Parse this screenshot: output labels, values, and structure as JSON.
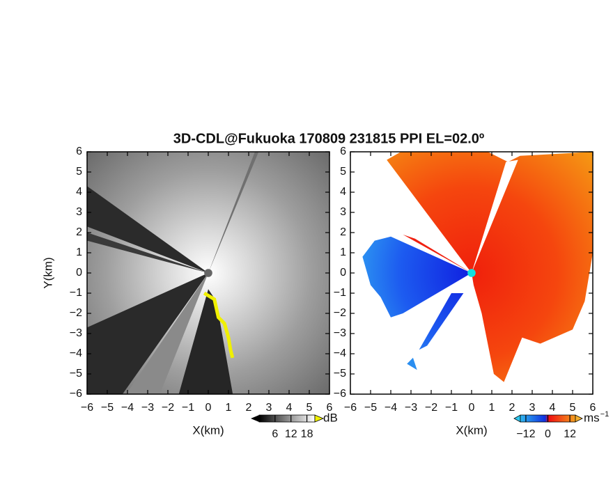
{
  "title": "3D-CDL@Fukuoka 170809 231815 PPI EL=02.0º",
  "chart_data": [
    {
      "type": "heatmap",
      "xlabel": "X(km)",
      "ylabel": "Y(km)",
      "xlim": [
        -6,
        6
      ],
      "ylim": [
        -6,
        6
      ],
      "xticks": [
        {
          "value": -6,
          "label": "−6"
        },
        {
          "value": -5,
          "label": "−5"
        },
        {
          "value": -4,
          "label": "−4"
        },
        {
          "value": -3,
          "label": "−3"
        },
        {
          "value": -2,
          "label": "−2"
        },
        {
          "value": -1,
          "label": "−1"
        },
        0,
        1,
        2,
        3,
        4,
        5,
        6
      ],
      "yticks": [
        {
          "value": -6,
          "label": "−6"
        },
        {
          "value": -5,
          "label": "−5"
        },
        {
          "value": -4,
          "label": "−4"
        },
        {
          "value": -3,
          "label": "−3"
        },
        {
          "value": -2,
          "label": "−2"
        },
        {
          "value": -1,
          "label": "−1"
        },
        0,
        1,
        2,
        3,
        4,
        5,
        6
      ],
      "colorbar": {
        "label": "dB",
        "clim": [
          0,
          21
        ],
        "ticks": [
          6,
          12,
          18
        ]
      }
    },
    {
      "type": "heatmap",
      "xlabel": "X(km)",
      "xlim": [
        -6,
        6
      ],
      "ylim": [
        -6,
        6
      ],
      "xticks": [
        {
          "value": -6,
          "label": "−6"
        },
        {
          "value": -5,
          "label": "−5"
        },
        {
          "value": -4,
          "label": "−4"
        },
        {
          "value": -3,
          "label": "−3"
        },
        {
          "value": -2,
          "label": "−2"
        },
        {
          "value": -1,
          "label": "−1"
        },
        0,
        1,
        2,
        3,
        4,
        5,
        6
      ],
      "yticks": [
        {
          "value": -6,
          "label": "−6"
        },
        {
          "value": -5,
          "label": "−5"
        },
        {
          "value": -4,
          "label": "−4"
        },
        {
          "value": -3,
          "label": "−3"
        },
        {
          "value": -2,
          "label": "−2"
        },
        {
          "value": -1,
          "label": "−1"
        },
        0,
        1,
        2,
        3,
        4,
        5,
        6
      ],
      "colorbar": {
        "label": "ms",
        "label_exponent": "−1",
        "clim": [
          -15,
          15
        ],
        "ticks": [
          {
            "value": -12,
            "label": "−12"
          },
          0,
          12
        ]
      }
    }
  ]
}
